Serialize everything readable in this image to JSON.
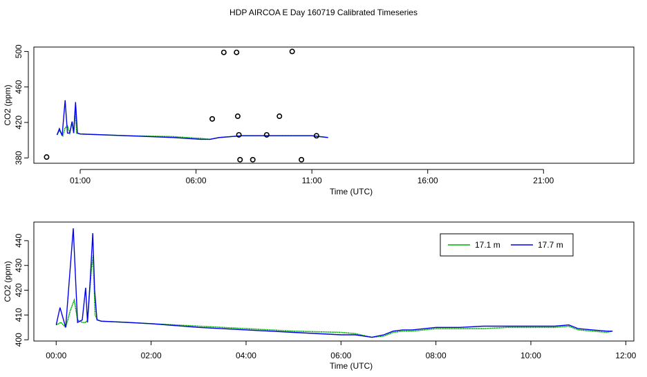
{
  "title": "HDP AIRCOA E  Day 160719  Calibrated Timeseries",
  "colors": {
    "series_17_1": "#00b000",
    "series_17_7": "#0000ee",
    "points": "#000000"
  },
  "chart_data": [
    {
      "type": "line",
      "name": "top",
      "xlabel": "Time (UTC)",
      "ylabel": "CO2 (ppm)",
      "xlim": [
        -1.0,
        24.9
      ],
      "ylim": [
        374,
        505
      ],
      "xticks": [
        {
          "value": 1.0,
          "label": "01:00"
        },
        {
          "value": 6.0,
          "label": "06:00"
        },
        {
          "value": 11.0,
          "label": "11:00"
        },
        {
          "value": 16.0,
          "label": "16:00"
        },
        {
          "value": 21.0,
          "label": "21:00"
        }
      ],
      "yticks": [
        {
          "value": 380,
          "label": "380"
        },
        {
          "value": 420,
          "label": "420"
        },
        {
          "value": 460,
          "label": "460"
        },
        {
          "value": 500,
          "label": "500"
        }
      ],
      "series": [
        {
          "name": "17.1 m",
          "color": "#00b000",
          "x": [
            0.0,
            0.1,
            0.25,
            0.35,
            0.45,
            0.55,
            0.65,
            0.72,
            0.78,
            0.85,
            1.0,
            3.0,
            5.0,
            6.2,
            6.6,
            7.0,
            8.0,
            9.0,
            10.0,
            11.0,
            11.7
          ],
          "y": [
            406,
            411,
            405,
            414,
            416,
            408,
            421,
            408,
            434,
            408,
            407,
            405,
            404,
            402,
            401,
            403,
            405,
            405,
            405,
            405,
            403
          ]
        },
        {
          "name": "17.7 m",
          "color": "#0000ee",
          "x": [
            0.0,
            0.1,
            0.22,
            0.35,
            0.45,
            0.55,
            0.65,
            0.72,
            0.8,
            0.88,
            1.0,
            3.0,
            5.0,
            6.2,
            6.6,
            7.0,
            8.0,
            9.0,
            10.0,
            11.0,
            11.7
          ],
          "y": [
            406,
            413,
            405,
            445,
            408,
            408,
            421,
            408,
            443,
            408,
            407,
            405,
            403,
            401,
            401,
            403,
            405,
            405,
            405,
            405,
            403
          ]
        }
      ],
      "points": {
        "x": [
          -0.45,
          6.7,
          7.2,
          7.75,
          7.8,
          7.85,
          7.9,
          8.45,
          9.05,
          9.6,
          10.15,
          10.55,
          11.2
        ],
        "y": [
          381,
          424,
          499,
          499,
          427,
          406,
          378,
          378,
          406,
          427,
          500,
          378,
          405
        ]
      }
    },
    {
      "type": "line",
      "name": "bottom",
      "xlabel": "Time (UTC)",
      "ylabel": "CO2 (ppm)",
      "xlim": [
        -0.47,
        12.17
      ],
      "ylim": [
        399.5,
        447.5
      ],
      "xticks": [
        {
          "value": 0,
          "label": "00:00"
        },
        {
          "value": 2,
          "label": "02:00"
        },
        {
          "value": 4,
          "label": "04:00"
        },
        {
          "value": 6,
          "label": "06:00"
        },
        {
          "value": 8,
          "label": "08:00"
        },
        {
          "value": 10,
          "label": "10:00"
        },
        {
          "value": 12,
          "label": "12:00"
        }
      ],
      "yticks": [
        {
          "value": 400,
          "label": "400"
        },
        {
          "value": 410,
          "label": "410"
        },
        {
          "value": 420,
          "label": "420"
        },
        {
          "value": 430,
          "label": "430"
        },
        {
          "value": 440,
          "label": "440"
        }
      ],
      "legend": {
        "placement": "top-right",
        "entries": [
          "17.1 m",
          "17.7 m"
        ]
      },
      "series": [
        {
          "name": "17.1 m",
          "color": "#00b000",
          "x": [
            0.0,
            0.1,
            0.2,
            0.3,
            0.38,
            0.45,
            0.55,
            0.62,
            0.66,
            0.7,
            0.74,
            0.78,
            0.82,
            0.87,
            0.95,
            1.5,
            2.0,
            3.0,
            4.0,
            5.0,
            6.0,
            6.3,
            6.65,
            6.9,
            7.1,
            7.3,
            7.5,
            8.0,
            8.5,
            9.0,
            9.5,
            10.0,
            10.5,
            10.8,
            11.0,
            11.3,
            11.6,
            11.72
          ],
          "y": [
            406,
            407,
            405,
            412,
            416,
            408,
            407,
            407,
            408,
            418,
            428,
            434,
            410,
            408,
            407.5,
            407,
            406.5,
            405.5,
            404.5,
            403.5,
            403,
            402.5,
            401,
            401.5,
            403,
            403.5,
            403.5,
            404.5,
            404.5,
            404.5,
            405,
            405,
            405,
            405.5,
            404,
            403.5,
            403,
            403.5
          ]
        },
        {
          "name": "17.7 m",
          "color": "#0000ee",
          "x": [
            0.0,
            0.08,
            0.2,
            0.28,
            0.36,
            0.45,
            0.55,
            0.62,
            0.66,
            0.72,
            0.77,
            0.81,
            0.86,
            0.95,
            1.5,
            2.0,
            3.0,
            4.0,
            5.0,
            6.0,
            6.3,
            6.65,
            6.9,
            7.1,
            7.3,
            7.5,
            8.0,
            8.5,
            9.0,
            9.5,
            10.0,
            10.5,
            10.8,
            11.0,
            11.3,
            11.6,
            11.72
          ],
          "y": [
            406,
            413,
            405,
            425,
            445,
            407,
            408,
            421,
            407,
            425,
            443,
            420,
            408,
            407.5,
            407,
            406.5,
            405,
            404,
            403,
            402,
            402,
            401,
            402,
            403.5,
            404,
            404,
            405,
            405,
            405.5,
            405.5,
            405.5,
            405.5,
            406,
            404.5,
            404,
            403.5,
            403.5
          ]
        }
      ]
    }
  ]
}
